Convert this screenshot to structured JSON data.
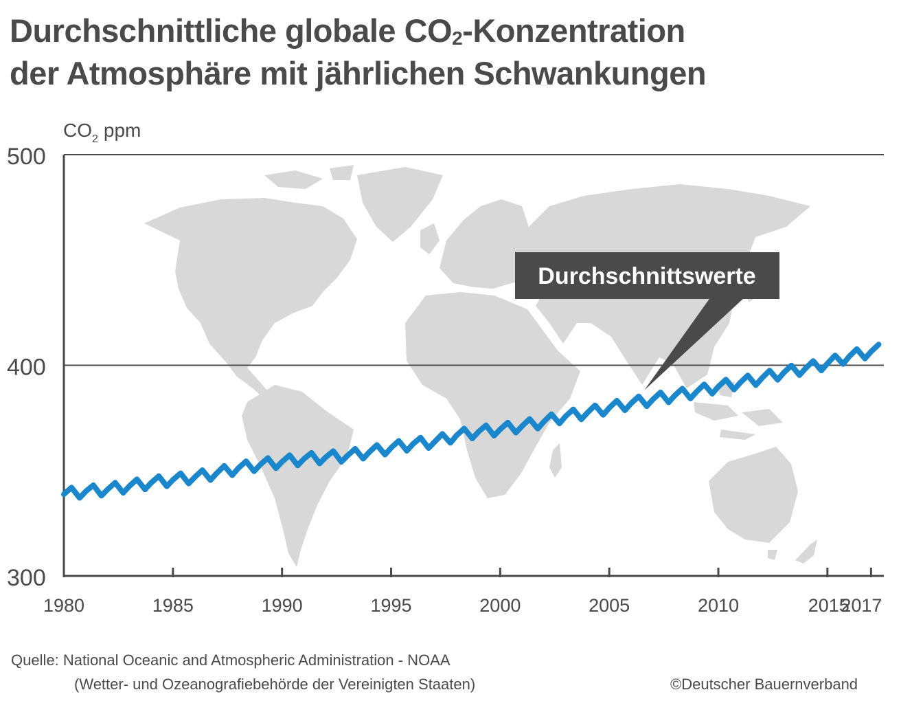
{
  "title": {
    "line1_part1": "Durchschnittliche globale CO",
    "line1_sub": "2",
    "line1_part2": "-Konzentration",
    "line2": "der Atmosphäre mit jährlichen Schwankungen"
  },
  "chart_data": {
    "type": "line",
    "ylabel_main": "CO",
    "ylabel_sub": "2",
    "ylabel_unit": "ppm",
    "ylim": [
      300,
      500
    ],
    "xlim": [
      1980,
      2017.5
    ],
    "yticks": [
      300,
      400,
      500
    ],
    "xticks": [
      1980,
      1985,
      1990,
      1995,
      2000,
      2005,
      2010,
      2015,
      2017
    ],
    "grid_lines": [
      400,
      500
    ],
    "annotation": "Durchschnittswerte",
    "series": [
      {
        "color": "#1a86cc",
        "x": [
          1980,
          1981,
          1982,
          1983,
          1984,
          1985,
          1986,
          1987,
          1988,
          1989,
          1990,
          1991,
          1992,
          1993,
          1994,
          1995,
          1996,
          1997,
          1998,
          1999,
          2000,
          2001,
          2002,
          2003,
          2004,
          2005,
          2006,
          2007,
          2008,
          2009,
          2010,
          2011,
          2012,
          2013,
          2014,
          2015,
          2016,
          2017
        ],
        "values": [
          338.8,
          340.1,
          341.0,
          342.6,
          344.2,
          345.6,
          346.9,
          348.7,
          351.2,
          352.8,
          354.2,
          355.5,
          356.3,
          357.1,
          358.8,
          360.8,
          362.6,
          363.7,
          366.7,
          368.4,
          369.6,
          371.1,
          373.2,
          375.8,
          377.5,
          379.8,
          381.9,
          383.8,
          385.6,
          387.4,
          389.9,
          391.7,
          393.9,
          396.5,
          398.6,
          400.8,
          404.2,
          406.5
        ],
        "seasonal_amplitude_ppm": 3
      }
    ]
  },
  "background_map": "world-map",
  "footer": {
    "source_line1": "Quelle: National Oceanic and Atmospheric Administration - NOAA",
    "source_line2": "(Wetter- und Ozeanografiebehörde der Vereinigten Staaten)",
    "copyright": "©Deutscher Bauernverband"
  },
  "colors": {
    "text": "#4a4a4a",
    "line": "#1a86cc",
    "map": "#d8d8d8",
    "callout": "#4a4a4a"
  }
}
